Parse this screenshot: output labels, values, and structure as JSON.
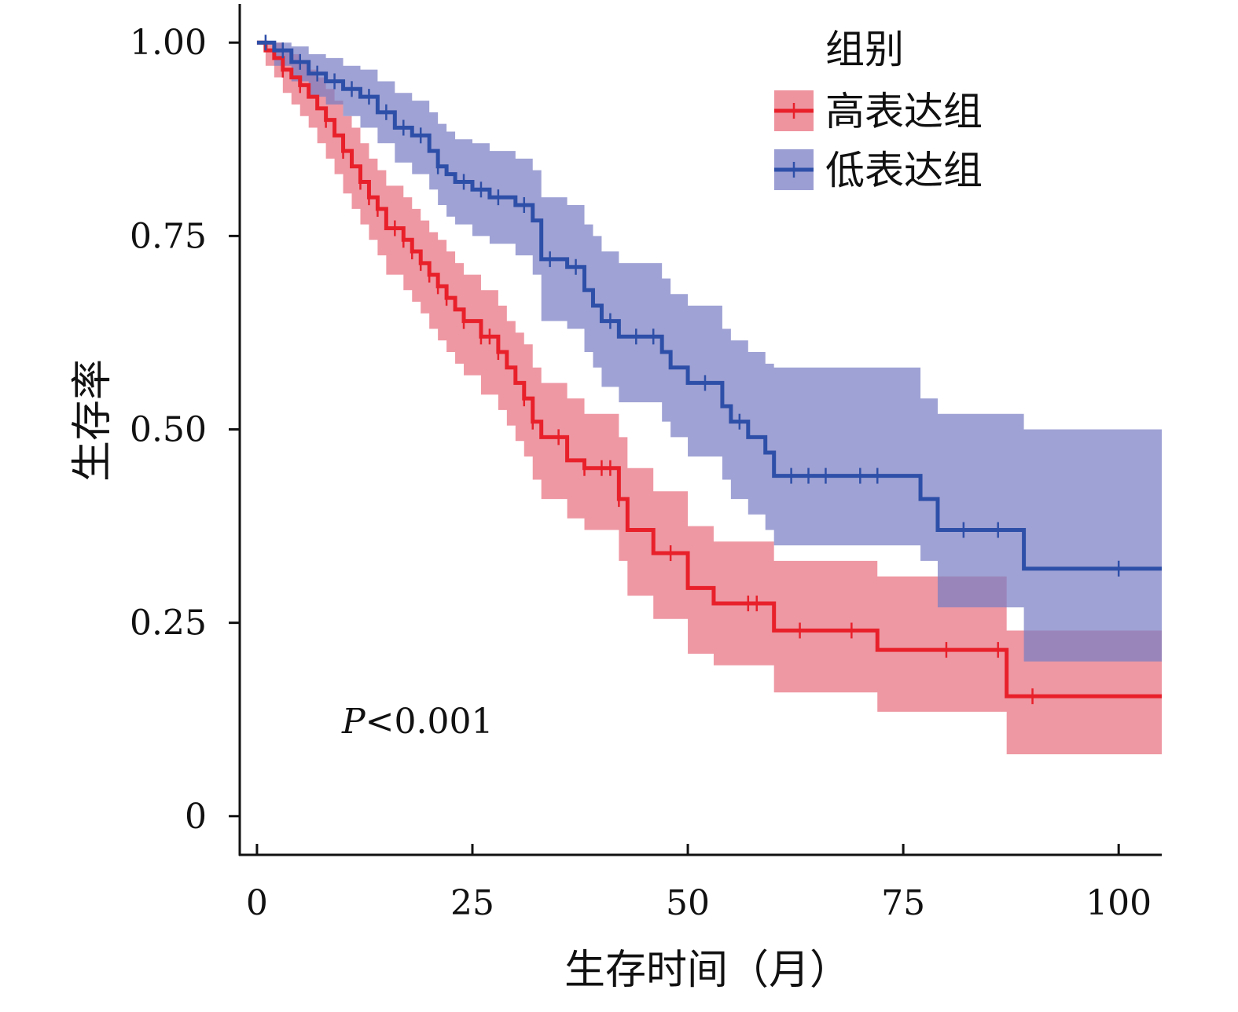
{
  "chart_data": {
    "type": "line",
    "title": "",
    "xlabel": "生存时间（月）",
    "ylabel": "生存率",
    "xlim": [
      -2,
      105
    ],
    "ylim": [
      -0.05,
      1.05
    ],
    "x_ticks": [
      0,
      25,
      50,
      75,
      100
    ],
    "x_tick_labels": [
      "0",
      "25",
      "50",
      "75",
      "100"
    ],
    "y_ticks": [
      0,
      0.25,
      0.5,
      0.75,
      1.0
    ],
    "y_tick_labels": [
      "0",
      "0.25",
      "0.50",
      "0.75",
      "1.00"
    ],
    "grid": false,
    "legend_title": "组别",
    "legend_position": "top-right",
    "annotation": {
      "prefix": "P",
      "text": "<0.001"
    },
    "series": [
      {
        "name": "高表达组",
        "color": "#e8202a",
        "ci_color": "#e8707f",
        "times": [
          0,
          1,
          2,
          3,
          4,
          5,
          6,
          7,
          8,
          9,
          10,
          11,
          12,
          13,
          14,
          15,
          17,
          18,
          19,
          20,
          21,
          22,
          23,
          24,
          26,
          28,
          29,
          30,
          31,
          32,
          33,
          36,
          38,
          42,
          43,
          46,
          50,
          53,
          60,
          72,
          87,
          105
        ],
        "survival": [
          1.0,
          0.99,
          0.98,
          0.965,
          0.955,
          0.945,
          0.93,
          0.915,
          0.9,
          0.88,
          0.86,
          0.84,
          0.82,
          0.8,
          0.785,
          0.76,
          0.745,
          0.73,
          0.715,
          0.7,
          0.685,
          0.67,
          0.655,
          0.64,
          0.62,
          0.6,
          0.58,
          0.56,
          0.54,
          0.51,
          0.49,
          0.46,
          0.45,
          0.41,
          0.37,
          0.34,
          0.295,
          0.275,
          0.24,
          0.215,
          0.155,
          0.155
        ],
        "ci_lower": [
          1.0,
          0.97,
          0.955,
          0.935,
          0.92,
          0.905,
          0.89,
          0.87,
          0.85,
          0.83,
          0.805,
          0.785,
          0.765,
          0.745,
          0.725,
          0.7,
          0.68,
          0.665,
          0.65,
          0.63,
          0.615,
          0.6,
          0.585,
          0.57,
          0.545,
          0.525,
          0.505,
          0.485,
          0.465,
          0.435,
          0.41,
          0.385,
          0.37,
          0.33,
          0.285,
          0.255,
          0.21,
          0.195,
          0.16,
          0.135,
          0.08,
          0.08
        ],
        "ci_upper": [
          1.0,
          1.0,
          1.0,
          0.99,
          0.985,
          0.975,
          0.965,
          0.955,
          0.94,
          0.925,
          0.905,
          0.89,
          0.87,
          0.85,
          0.835,
          0.815,
          0.8,
          0.785,
          0.77,
          0.755,
          0.745,
          0.73,
          0.715,
          0.7,
          0.68,
          0.66,
          0.64,
          0.625,
          0.61,
          0.58,
          0.56,
          0.54,
          0.52,
          0.49,
          0.45,
          0.42,
          0.375,
          0.355,
          0.33,
          0.31,
          0.24,
          0.2
        ],
        "censor_times": [
          3,
          5,
          8,
          10,
          12,
          13,
          14,
          16,
          17,
          18,
          19,
          20,
          21,
          22,
          24,
          26,
          27,
          28,
          31,
          32,
          35,
          38,
          40,
          41,
          42,
          48,
          57,
          58,
          63,
          69,
          80,
          86,
          90
        ]
      },
      {
        "name": "低表达组",
        "color": "#2e4fa8",
        "ci_color": "#7a7ec4",
        "times": [
          0,
          2,
          4,
          6,
          8,
          10,
          12,
          14,
          16,
          18,
          20,
          21,
          22,
          23,
          25,
          27,
          30,
          32,
          33,
          36,
          38,
          39,
          40,
          42,
          47,
          48,
          50,
          54,
          55,
          57,
          59,
          60,
          77,
          79,
          89,
          105
        ],
        "survival": [
          1.0,
          0.99,
          0.975,
          0.96,
          0.95,
          0.94,
          0.93,
          0.91,
          0.89,
          0.88,
          0.86,
          0.84,
          0.83,
          0.82,
          0.81,
          0.8,
          0.79,
          0.77,
          0.72,
          0.71,
          0.68,
          0.66,
          0.64,
          0.62,
          0.6,
          0.58,
          0.56,
          0.53,
          0.51,
          0.49,
          0.47,
          0.44,
          0.41,
          0.37,
          0.32,
          0.32
        ],
        "ci_lower": [
          1.0,
          0.97,
          0.95,
          0.93,
          0.92,
          0.905,
          0.89,
          0.87,
          0.845,
          0.83,
          0.81,
          0.79,
          0.775,
          0.765,
          0.75,
          0.74,
          0.725,
          0.7,
          0.64,
          0.63,
          0.6,
          0.58,
          0.555,
          0.535,
          0.51,
          0.49,
          0.465,
          0.435,
          0.41,
          0.39,
          0.37,
          0.35,
          0.33,
          0.27,
          0.2,
          0.2
        ],
        "ci_upper": [
          1.0,
          1.0,
          0.995,
          0.985,
          0.98,
          0.97,
          0.965,
          0.95,
          0.935,
          0.925,
          0.91,
          0.895,
          0.885,
          0.875,
          0.87,
          0.86,
          0.85,
          0.835,
          0.8,
          0.79,
          0.765,
          0.75,
          0.73,
          0.715,
          0.695,
          0.675,
          0.66,
          0.63,
          0.615,
          0.6,
          0.585,
          0.58,
          0.54,
          0.52,
          0.5,
          0.5
        ],
        "censor_times": [
          1,
          3,
          5,
          7,
          9,
          11,
          13,
          15,
          17,
          19,
          21,
          24,
          26,
          28,
          31,
          34,
          37,
          41,
          44,
          46,
          52,
          56,
          62,
          64,
          66,
          70,
          72,
          82,
          86,
          100
        ]
      }
    ]
  }
}
